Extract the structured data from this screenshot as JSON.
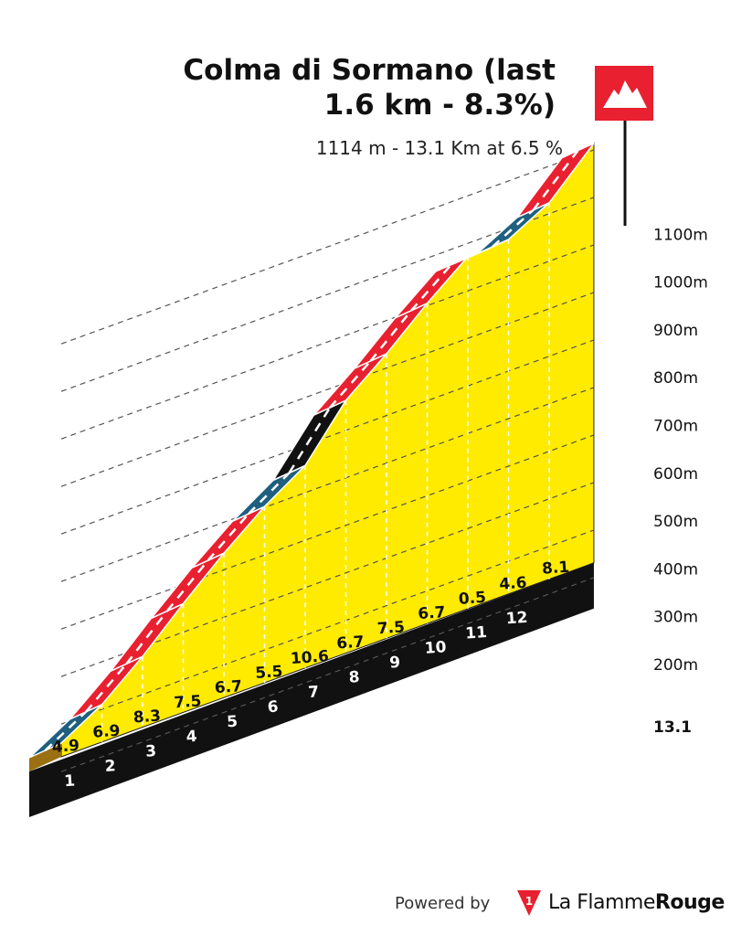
{
  "header": {
    "title_line1": "Colma di Sormano (last",
    "title_line2": "1.6 km - 8.3%)",
    "subtitle": "1114 m - 13.1 Km at 6.5 %"
  },
  "footer": {
    "powered_by": "Powered by",
    "brand_regular": "La Flamme",
    "brand_bold": "Rouge",
    "logo_digit": "1"
  },
  "colors": {
    "profile_fill": "#ffeb00",
    "gradient_green": "#7ed321",
    "gradient_blue": "#1f5f7f",
    "gradient_red": "#e8202f",
    "gradient_black": "#111111",
    "gradient_brown": "#9a7012",
    "summit_flag": "#e8202f"
  },
  "chart_data": {
    "type": "area",
    "title": "Colma di Sormano (last 1.6 km - 8.3%)",
    "xlabel": "",
    "ylabel": "",
    "total_distance_label": "13.1",
    "y_ticks": [
      "200m",
      "300m",
      "400m",
      "500m",
      "600m",
      "700m",
      "800m",
      "900m",
      "1000m",
      "1100m"
    ],
    "km_labels": [
      "1",
      "2",
      "3",
      "4",
      "5",
      "6",
      "7",
      "8",
      "9",
      "10",
      "11",
      "12"
    ],
    "segments": [
      {
        "km": "1",
        "gradient": "4.9",
        "color": "blue"
      },
      {
        "km": "2",
        "gradient": "6.9",
        "color": "red"
      },
      {
        "km": "3",
        "gradient": "8.3",
        "color": "red"
      },
      {
        "km": "4",
        "gradient": "7.5",
        "color": "red"
      },
      {
        "km": "5",
        "gradient": "6.7",
        "color": "red"
      },
      {
        "km": "6",
        "gradient": "5.5",
        "color": "blue"
      },
      {
        "km": "7",
        "gradient": "10.6",
        "color": "black"
      },
      {
        "km": "8",
        "gradient": "6.7",
        "color": "red"
      },
      {
        "km": "9",
        "gradient": "7.5",
        "color": "red"
      },
      {
        "km": "10",
        "gradient": "6.7",
        "color": "red"
      },
      {
        "km": "11",
        "gradient": "0.5",
        "color": "green"
      },
      {
        "km": "12",
        "gradient": "4.6",
        "color": "blue"
      },
      {
        "km": "13.1",
        "gradient": "8.1",
        "color": "red"
      }
    ],
    "x_km": [
      0,
      1,
      2,
      3,
      4,
      5,
      6,
      7,
      8,
      9,
      10,
      11,
      12,
      13.1
    ],
    "elevation_m": [
      260,
      310,
      380,
      460,
      535,
      602,
      657,
      763,
      830,
      905,
      972,
      977,
      1023,
      1114
    ],
    "summit_marker": "mountain-flag"
  }
}
